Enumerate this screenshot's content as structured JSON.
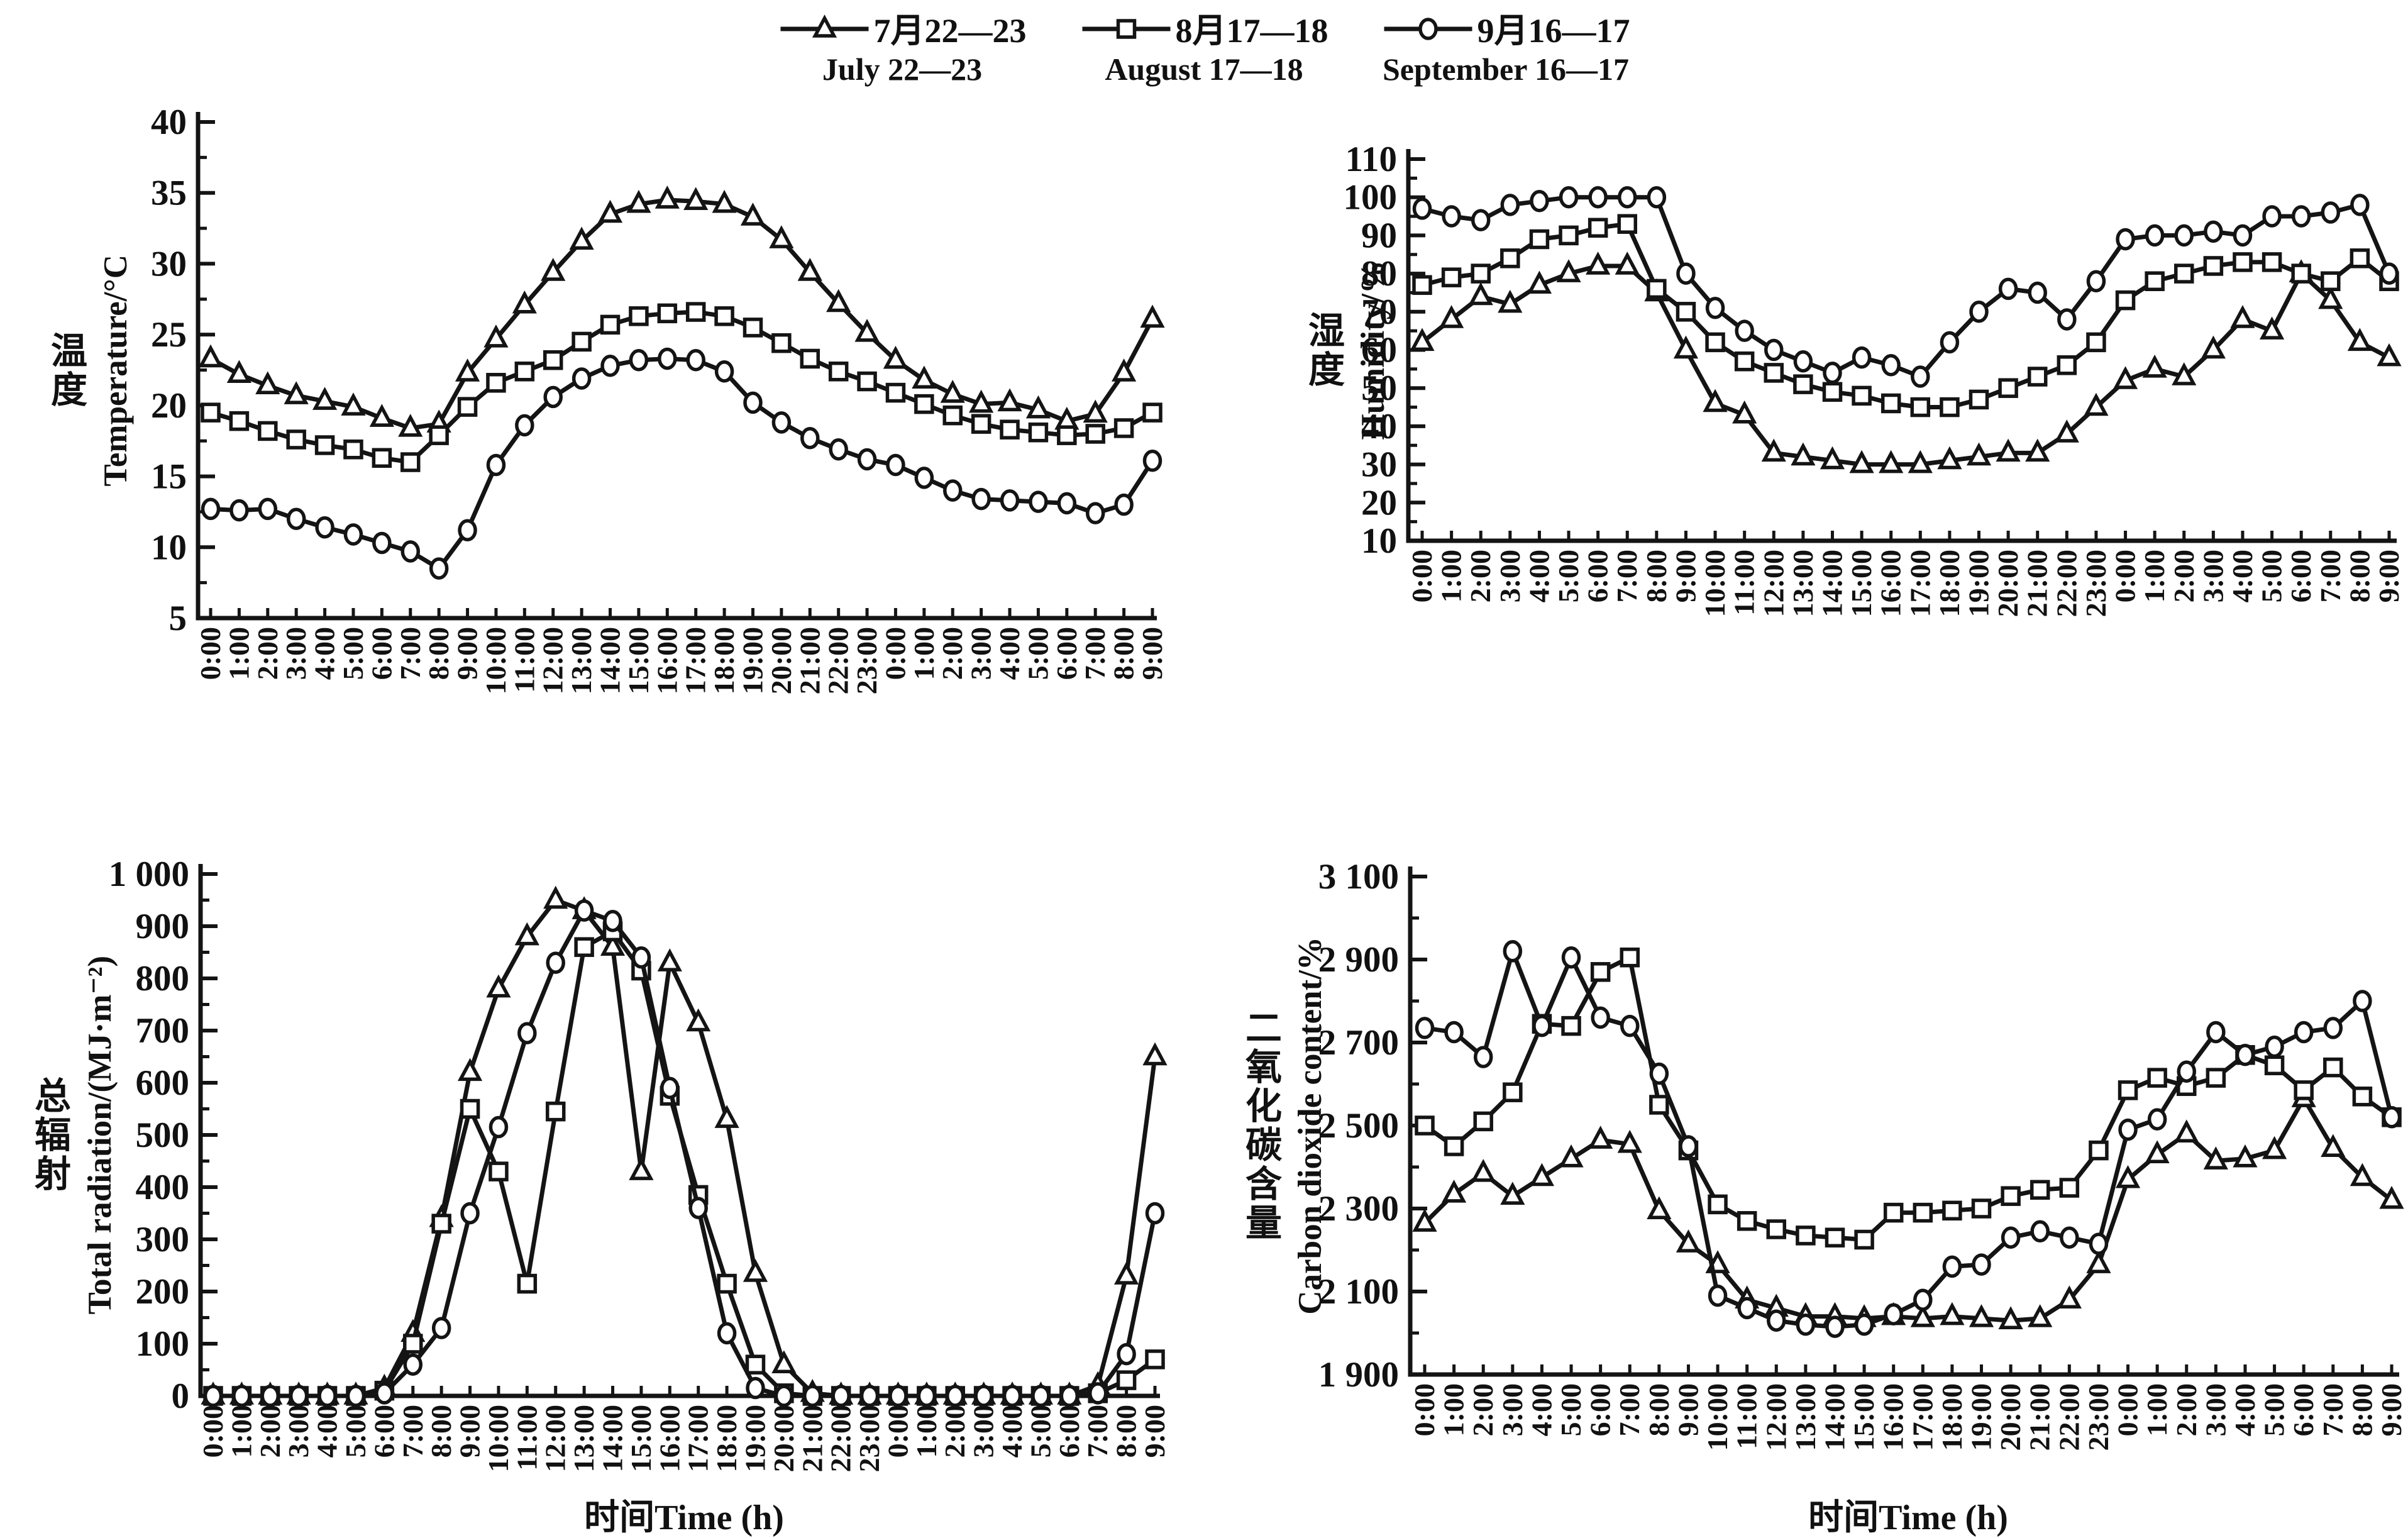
{
  "legend": {
    "items": [
      {
        "series": "july",
        "marker": "triangle",
        "label_cn": "7月22—23",
        "label_en": "July 22—23"
      },
      {
        "series": "august",
        "marker": "square",
        "label_cn": "8月17—18",
        "label_en": "August 17—18"
      },
      {
        "series": "september",
        "marker": "circle",
        "label_cn": "9月16—17",
        "label_en": "September 16—17"
      }
    ]
  },
  "axes": {
    "x_title": "时间Time (h)"
  },
  "colors": {
    "line": "#141414",
    "text": "#111111",
    "marker_fill": "#ffffff"
  },
  "chart_data": [
    {
      "id": "temperature",
      "type": "line",
      "ylabel_cn": "温度",
      "ylabel_en": "Temperature/°C",
      "xlabel": "时间Time (h)",
      "ylim": [
        5,
        40
      ],
      "ytick_step": 5,
      "ytick_labels": [
        "40",
        "35",
        "30",
        "25",
        "20",
        "15",
        "10",
        "5"
      ],
      "grid": false,
      "legend_position": "top",
      "categories": [
        "0:00",
        "1:00",
        "2:00",
        "3:00",
        "4:00",
        "5:00",
        "6:00",
        "7:00",
        "8:00",
        "9:00",
        "10:00",
        "11:00",
        "12:00",
        "13:00",
        "14:00",
        "15:00",
        "16:00",
        "17:00",
        "18:00",
        "19:00",
        "20:00",
        "21:00",
        "22:00",
        "23:00",
        "0:00",
        "1:00",
        "2:00",
        "3:00",
        "4:00",
        "5:00",
        "6:00",
        "7:00",
        "8:00",
        "9:00"
      ],
      "series": [
        {
          "name": "July 22—23",
          "marker": "triangle",
          "values": [
            23.3,
            22.2,
            21.4,
            20.7,
            20.3,
            19.9,
            19.1,
            18.4,
            18.7,
            22.3,
            24.7,
            27.1,
            29.4,
            31.6,
            33.5,
            34.2,
            34.5,
            34.4,
            34.2,
            33.3,
            31.7,
            29.4,
            27.2,
            25.1,
            23.2,
            21.8,
            20.8,
            20.1,
            20.2,
            19.7,
            18.9,
            19.4,
            22.3,
            26.1
          ]
        },
        {
          "name": "August 17—18",
          "marker": "square",
          "values": [
            19.5,
            18.9,
            18.2,
            17.6,
            17.2,
            16.9,
            16.3,
            16.0,
            17.9,
            19.9,
            21.6,
            22.4,
            23.2,
            24.5,
            25.7,
            26.3,
            26.5,
            26.6,
            26.3,
            25.5,
            24.4,
            23.3,
            22.4,
            21.7,
            20.9,
            20.1,
            19.3,
            18.7,
            18.3,
            18.1,
            17.9,
            18.0,
            18.4,
            19.5
          ]
        },
        {
          "name": "September 16—17",
          "marker": "circle",
          "values": [
            12.7,
            12.6,
            12.7,
            12.0,
            11.4,
            10.9,
            10.3,
            9.7,
            8.5,
            11.2,
            15.8,
            18.6,
            20.6,
            21.9,
            22.8,
            23.2,
            23.3,
            23.2,
            22.4,
            20.2,
            18.8,
            17.7,
            16.9,
            16.2,
            15.8,
            14.9,
            14.0,
            13.4,
            13.3,
            13.2,
            13.1,
            12.4,
            13.0,
            16.1
          ]
        }
      ]
    },
    {
      "id": "humidity",
      "type": "line",
      "ylabel_cn": "湿度",
      "ylabel_en": "Humidity/%",
      "xlabel": "时间Time (h)",
      "ylim": [
        10,
        110
      ],
      "ytick_step": 10,
      "ytick_labels": [
        "110",
        "100",
        "90",
        "80",
        "70",
        "60",
        "50",
        "40",
        "30",
        "20",
        "10"
      ],
      "grid": false,
      "legend_position": "top",
      "categories": [
        "0:00",
        "1:00",
        "2:00",
        "3:00",
        "4:00",
        "5:00",
        "6:00",
        "7:00",
        "8:00",
        "9:00",
        "10:00",
        "11:00",
        "12:00",
        "13:00",
        "14:00",
        "15:00",
        "16:00",
        "17:00",
        "18:00",
        "19:00",
        "20:00",
        "21:00",
        "22:00",
        "23:00",
        "0:00",
        "1:00",
        "2:00",
        "3:00",
        "4:00",
        "5:00",
        "6:00",
        "7:00",
        "8:00",
        "9:00"
      ],
      "series": [
        {
          "name": "July 22—23",
          "marker": "triangle",
          "values": [
            62,
            68,
            74,
            72,
            77,
            80,
            82,
            82,
            75,
            60,
            46,
            43,
            33,
            32,
            31,
            30,
            30,
            30,
            31,
            32,
            33,
            33,
            38,
            45,
            52,
            55,
            53,
            60,
            68,
            65,
            80,
            73,
            62,
            58
          ]
        },
        {
          "name": "August 17—18",
          "marker": "square",
          "values": [
            77,
            79,
            80,
            84,
            89,
            90,
            92,
            93,
            76,
            70,
            62,
            57,
            54,
            51,
            49,
            48,
            46,
            45,
            45,
            47,
            50,
            53,
            56,
            62,
            73,
            78,
            80,
            82,
            83,
            83,
            80,
            78,
            84,
            78
          ]
        },
        {
          "name": "September 16—17",
          "marker": "circle",
          "values": [
            97,
            95,
            94,
            98,
            99,
            100,
            100,
            100,
            100,
            80,
            71,
            65,
            60,
            57,
            54,
            58,
            56,
            53,
            62,
            70,
            76,
            75,
            68,
            78,
            89,
            90,
            90,
            91,
            90,
            95,
            95,
            96,
            98,
            80
          ]
        }
      ]
    },
    {
      "id": "radiation",
      "type": "line",
      "ylabel_cn": "总辐射",
      "ylabel_en": "Total radiation/(MJ·m⁻²)",
      "xlabel": "时间Time (h)",
      "ylim": [
        0,
        1000
      ],
      "ytick_step": 100,
      "ytick_labels": [
        "1 000",
        "900",
        "800",
        "700",
        "600",
        "500",
        "400",
        "300",
        "200",
        "100",
        "0"
      ],
      "grid": false,
      "legend_position": "top",
      "categories": [
        "0:00",
        "1:00",
        "2:00",
        "3:00",
        "4:00",
        "5:00",
        "6:00",
        "7:00",
        "8:00",
        "9:00",
        "10:00",
        "11:00",
        "12:00",
        "13:00",
        "14:00",
        "15:00",
        "16:00",
        "17:00",
        "18:00",
        "19:00",
        "20:00",
        "21:00",
        "22:00",
        "23:00",
        "0:00",
        "1:00",
        "2:00",
        "3:00",
        "4:00",
        "5:00",
        "6:00",
        "7:00",
        "8:00",
        "9:00"
      ],
      "series": [
        {
          "name": "July 22—23",
          "marker": "triangle",
          "values": [
            0,
            0,
            0,
            0,
            0,
            0,
            15,
            120,
            340,
            620,
            780,
            880,
            950,
            930,
            860,
            430,
            830,
            715,
            530,
            235,
            60,
            5,
            0,
            0,
            0,
            0,
            0,
            0,
            0,
            0,
            0,
            20,
            230,
            650
          ]
        },
        {
          "name": "August 17—18",
          "marker": "square",
          "values": [
            0,
            0,
            0,
            0,
            0,
            0,
            10,
            100,
            330,
            550,
            430,
            215,
            545,
            860,
            890,
            815,
            575,
            385,
            215,
            60,
            5,
            0,
            0,
            0,
            0,
            0,
            0,
            0,
            0,
            0,
            0,
            5,
            30,
            70
          ]
        },
        {
          "name": "September 16—17",
          "marker": "circle",
          "values": [
            0,
            0,
            0,
            0,
            0,
            0,
            5,
            60,
            130,
            350,
            515,
            695,
            830,
            930,
            910,
            840,
            590,
            360,
            120,
            15,
            0,
            0,
            0,
            0,
            0,
            0,
            0,
            0,
            0,
            0,
            0,
            5,
            80,
            350
          ]
        }
      ]
    },
    {
      "id": "co2",
      "type": "line",
      "ylabel_cn": "二氧化碳含量",
      "ylabel_en": "Carbon dioxide content/%",
      "xlabel": "时间Time (h)",
      "ylim": [
        1900,
        3100
      ],
      "ytick_step": 200,
      "ytick_labels": [
        "3 100",
        "2 900",
        "2 700",
        "2 500",
        "2 300",
        "2 100",
        "1 900"
      ],
      "grid": false,
      "legend_position": "top",
      "categories": [
        "0:00",
        "1:00",
        "2:00",
        "3:00",
        "4:00",
        "5:00",
        "6:00",
        "7:00",
        "8:00",
        "9:00",
        "10:00",
        "11:00",
        "12:00",
        "13:00",
        "14:00",
        "15:00",
        "16:00",
        "17:00",
        "18:00",
        "19:00",
        "20:00",
        "21:00",
        "22:00",
        "23:00",
        "0:00",
        "1:00",
        "2:00",
        "3:00",
        "4:00",
        "5:00",
        "6:00",
        "7:00",
        "8:00",
        "9:00"
      ],
      "series": [
        {
          "name": "July 22—23",
          "marker": "triangle",
          "values": [
            2265,
            2335,
            2385,
            2330,
            2375,
            2420,
            2465,
            2455,
            2295,
            2215,
            2165,
            2080,
            2060,
            2040,
            2040,
            2035,
            2040,
            2035,
            2040,
            2035,
            2030,
            2035,
            2080,
            2165,
            2370,
            2430,
            2480,
            2415,
            2420,
            2440,
            2565,
            2445,
            2375,
            2320
          ]
        },
        {
          "name": "August 17—18",
          "marker": "square",
          "values": [
            2500,
            2450,
            2510,
            2580,
            2745,
            2740,
            2870,
            2905,
            2550,
            2440,
            2310,
            2270,
            2250,
            2235,
            2230,
            2225,
            2290,
            2290,
            2295,
            2300,
            2330,
            2345,
            2350,
            2440,
            2585,
            2615,
            2595,
            2615,
            2670,
            2645,
            2585,
            2640,
            2570,
            2520
          ]
        },
        {
          "name": "September 16—17",
          "marker": "circle",
          "values": [
            2735,
            2725,
            2665,
            2920,
            2740,
            2905,
            2760,
            2740,
            2625,
            2450,
            2090,
            2060,
            2030,
            2020,
            2015,
            2020,
            2045,
            2080,
            2160,
            2165,
            2230,
            2245,
            2230,
            2215,
            2490,
            2515,
            2630,
            2725,
            2670,
            2690,
            2725,
            2735,
            2800,
            2520
          ]
        }
      ]
    }
  ]
}
